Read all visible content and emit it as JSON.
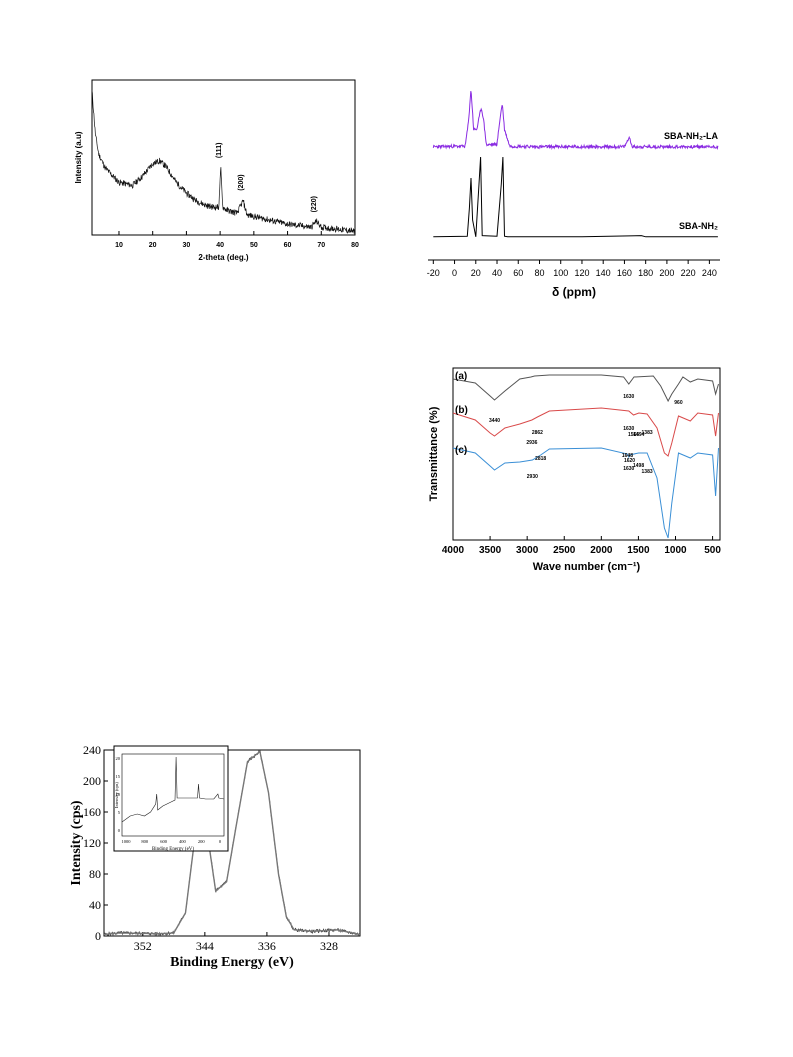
{
  "chart_data": [
    {
      "type": "line",
      "xlabel": "2-theta (deg.)",
      "ylabel": "Intensity (a.u)",
      "xlim": [
        2,
        80
      ],
      "xticks": [
        10,
        20,
        30,
        40,
        50,
        60,
        70,
        80
      ],
      "x": [
        2,
        3,
        4,
        6,
        10,
        14,
        17,
        20,
        22,
        24,
        27,
        30,
        33,
        36,
        38,
        39.6,
        40.2,
        40.8,
        42,
        45,
        46.8,
        48,
        52,
        56,
        60,
        64,
        67,
        68.5,
        70,
        74,
        78,
        80
      ],
      "y": [
        0.93,
        0.65,
        0.52,
        0.43,
        0.34,
        0.32,
        0.38,
        0.46,
        0.48,
        0.44,
        0.34,
        0.27,
        0.22,
        0.19,
        0.18,
        0.18,
        0.43,
        0.18,
        0.16,
        0.14,
        0.22,
        0.13,
        0.11,
        0.09,
        0.07,
        0.06,
        0.05,
        0.09,
        0.05,
        0.04,
        0.03,
        0.02
      ],
      "annotations": [
        "(111)",
        "(200)",
        "(220)"
      ],
      "grid": false
    },
    {
      "type": "line",
      "xlabel": "δ (ppm)",
      "xlim": [
        -25,
        250
      ],
      "xticks": [
        -20,
        0,
        20,
        40,
        60,
        80,
        100,
        120,
        140,
        160,
        180,
        200,
        220,
        240
      ],
      "series": [
        {
          "name": "SBA-NH₂-LA",
          "color": "#8a2be2",
          "x": [
            -20,
            10,
            13,
            15.5,
            18,
            21,
            25,
            27,
            30,
            40,
            43,
            45,
            47,
            52,
            80,
            120,
            160,
            165,
            167,
            169,
            175,
            248
          ],
          "y": [
            0.02,
            0.03,
            0.4,
            0.95,
            0.3,
            0.3,
            0.65,
            0.5,
            0.05,
            0.06,
            0.5,
            0.72,
            0.3,
            0.03,
            0.02,
            0.02,
            0.02,
            0.18,
            0.02,
            0.02,
            0.02,
            0.02
          ]
        },
        {
          "name": "SBA-NH₂",
          "color": "#000000",
          "x": [
            -20,
            12,
            14,
            15.5,
            17,
            20,
            23,
            24.5,
            26,
            40,
            44,
            45.5,
            47,
            50,
            120,
            176,
            180,
            248
          ],
          "y": [
            0.02,
            0.03,
            0.5,
            1.0,
            0.3,
            0.02,
            0.9,
            1.35,
            0.04,
            0.03,
            0.9,
            1.35,
            0.03,
            0.02,
            0.02,
            0.04,
            0.02,
            0.02
          ]
        }
      ],
      "grid": false
    },
    {
      "type": "line",
      "xlabel": "Wave number (cm⁻¹)",
      "ylabel": "Transmittance (%)",
      "xlim": [
        4000,
        400
      ],
      "xticks": [
        4000,
        3500,
        3000,
        2500,
        2000,
        1500,
        1000,
        500
      ],
      "series": [
        {
          "name": "(a)",
          "color": "#555555",
          "x": [
            4000,
            3700,
            3500,
            3440,
            3300,
            3100,
            2950,
            2900,
            2700,
            2000,
            1700,
            1630,
            1560,
            1300,
            1200,
            1100,
            1050,
            960,
            900,
            800,
            700,
            500,
            460,
            420
          ],
          "y": [
            0.05,
            0.09,
            0.22,
            0.26,
            0.17,
            0.05,
            0.03,
            0.02,
            0.01,
            0.01,
            0.03,
            0.1,
            0.03,
            0.02,
            0.12,
            0.27,
            0.2,
            0.1,
            0.03,
            0.08,
            0.05,
            0.07,
            0.2,
            0.1
          ]
        },
        {
          "name": "(b)",
          "color": "#d94a4a",
          "x": [
            4000,
            3700,
            3500,
            3440,
            3300,
            3100,
            2936,
            2862,
            2700,
            2000,
            1630,
            1566,
            1494,
            1383,
            1250,
            1150,
            1100,
            1050,
            960,
            800,
            700,
            500,
            460,
            420
          ],
          "y": [
            0.05,
            0.12,
            0.25,
            0.28,
            0.2,
            0.16,
            0.12,
            0.09,
            0.03,
            0.0,
            0.03,
            0.07,
            0.05,
            0.06,
            0.2,
            0.45,
            0.48,
            0.35,
            0.08,
            0.13,
            0.05,
            0.07,
            0.28,
            0.05
          ]
        },
        {
          "name": "(c)",
          "color": "#3a8fd6",
          "x": [
            4000,
            3700,
            3500,
            3440,
            3300,
            3100,
            2930,
            2818,
            2700,
            2000,
            1648,
            1630,
            1620,
            1498,
            1383,
            1250,
            1150,
            1100,
            1050,
            960,
            800,
            700,
            500,
            460,
            420
          ],
          "y": [
            0.0,
            0.05,
            0.18,
            0.22,
            0.15,
            0.14,
            0.12,
            0.07,
            0.01,
            0.0,
            0.06,
            0.09,
            0.07,
            0.05,
            0.05,
            0.3,
            0.8,
            0.9,
            0.55,
            0.05,
            0.1,
            0.05,
            0.07,
            0.48,
            0.0
          ]
        }
      ],
      "annotations": [
        "3440",
        "1630",
        "960",
        "2936",
        "2862",
        "1630",
        "1566",
        "1494",
        "1383",
        "2818",
        "2930",
        "1648",
        "1620",
        "1630",
        "1498",
        "1383"
      ],
      "grid": false
    },
    {
      "type": "line",
      "xlabel": "Binding Energy (eV)",
      "ylabel": "Intensity (cps)",
      "xlim": [
        357,
        324
      ],
      "ylim": [
        0,
        240
      ],
      "xticks": [
        352,
        344,
        336,
        328
      ],
      "yticks": [
        0,
        40,
        80,
        120,
        160,
        200,
        240
      ],
      "series": [
        {
          "name": "",
          "x": [
            357,
            355,
            350,
            348,
            346.5,
            345.5,
            345.2,
            344.5,
            343.5,
            342.6,
            341.2,
            340,
            338.5,
            336.9,
            335.8,
            334.5,
            333.5,
            332.5,
            330,
            327,
            324
          ],
          "y": [
            2,
            4,
            3,
            4,
            30,
            110,
            145,
            160,
            120,
            58,
            70,
            140,
            225,
            238,
            185,
            80,
            25,
            8,
            6,
            8,
            2
          ]
        }
      ],
      "inset": {
        "xlabel": "Binding Energy (eV)",
        "ylabel": "Intensity (cps)",
        "xticks": [
          "1000",
          "800",
          "600",
          "400",
          "200",
          "0"
        ],
        "yticks": [
          "20",
          "15",
          "10",
          "5",
          "0"
        ]
      },
      "grid": false
    }
  ]
}
